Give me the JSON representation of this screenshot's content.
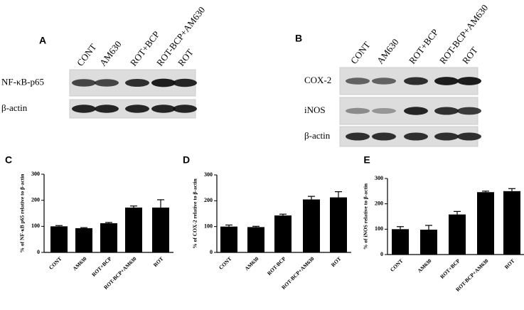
{
  "blots": [
    {
      "panel": "A",
      "lanes": [
        "CONT",
        "AM630",
        "ROT+BCP",
        "ROT-BCP+AM630",
        "ROT"
      ],
      "rows": [
        "NF-κB-p65",
        "β-actin"
      ]
    },
    {
      "panel": "B",
      "lanes": [
        "CONT",
        "AM630",
        "ROT+BCP",
        "ROT-BCP+AM630",
        "ROT"
      ],
      "rows": [
        "COX-2",
        "iNOS",
        "β-actin"
      ]
    }
  ],
  "chart_data": [
    {
      "type": "bar",
      "panel": "C",
      "ylabel": "% of NF-κB p65 relative to β-actin",
      "categories": [
        "CONT",
        "AM630",
        "ROT+BCP",
        "ROT-BCP+AM630",
        "ROT"
      ],
      "values": [
        100,
        93,
        112,
        172,
        172
      ],
      "errors": [
        3,
        2,
        3,
        6,
        30
      ],
      "color": "#000000",
      "ylim": [
        0,
        300
      ],
      "yticks": [
        0,
        100,
        200,
        300
      ]
    },
    {
      "type": "bar",
      "panel": "D",
      "ylabel": "% of COX-2 relative to β-actin",
      "categories": [
        "CONT",
        "AM630",
        "ROT-BCP",
        "ROT-BCP+AM630",
        "ROT"
      ],
      "values": [
        100,
        98,
        143,
        205,
        213
      ],
      "errors": [
        6,
        3,
        5,
        12,
        22
      ],
      "color": "#000000",
      "ylim": [
        0,
        300
      ],
      "yticks": [
        0,
        100,
        200,
        300
      ]
    },
    {
      "type": "bar",
      "panel": "E",
      "ylabel": "% of iNOS relative to β-actin",
      "categories": [
        "CONT",
        "AM630",
        "ROT+BCP",
        "ROT-BCP+AM630",
        "ROT"
      ],
      "values": [
        100,
        98,
        158,
        246,
        250
      ],
      "errors": [
        10,
        17,
        12,
        4,
        10
      ],
      "color": "#000000",
      "ylim": [
        0,
        300
      ],
      "yticks": [
        0,
        100,
        200,
        300
      ]
    }
  ]
}
